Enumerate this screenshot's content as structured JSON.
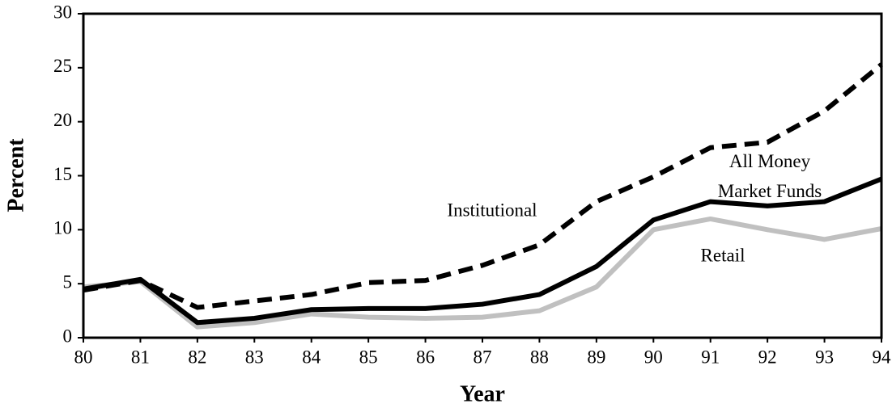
{
  "chart_data": {
    "type": "line",
    "x_label": "Year",
    "y_label": "Percent",
    "categories": [
      "80",
      "81",
      "82",
      "83",
      "84",
      "85",
      "86",
      "87",
      "88",
      "89",
      "90",
      "91",
      "92",
      "93",
      "94"
    ],
    "series": [
      {
        "name": "Institutional",
        "color": "#000000",
        "dashed": true,
        "values": [
          4.4,
          5.3,
          2.8,
          3.4,
          4.0,
          5.1,
          5.3,
          6.7,
          8.6,
          12.6,
          14.9,
          17.6,
          18.1,
          21.0,
          25.3
        ]
      },
      {
        "name": "All Money Market Funds",
        "color": "#000000",
        "dashed": false,
        "values": [
          4.5,
          5.4,
          1.4,
          1.8,
          2.6,
          2.7,
          2.7,
          3.1,
          4.0,
          6.6,
          10.9,
          12.6,
          12.2,
          12.6,
          14.7
        ]
      },
      {
        "name": "Retail",
        "color": "#c0c0c0",
        "dashed": false,
        "values": [
          4.7,
          5.2,
          1.0,
          1.4,
          2.2,
          1.9,
          1.8,
          1.9,
          2.5,
          4.7,
          10.0,
          11.0,
          10.0,
          9.1,
          10.1
        ]
      }
    ],
    "ylim": [
      0,
      30
    ],
    "yticks": [
      0,
      5,
      10,
      15,
      20,
      25,
      30
    ],
    "grid": false
  }
}
